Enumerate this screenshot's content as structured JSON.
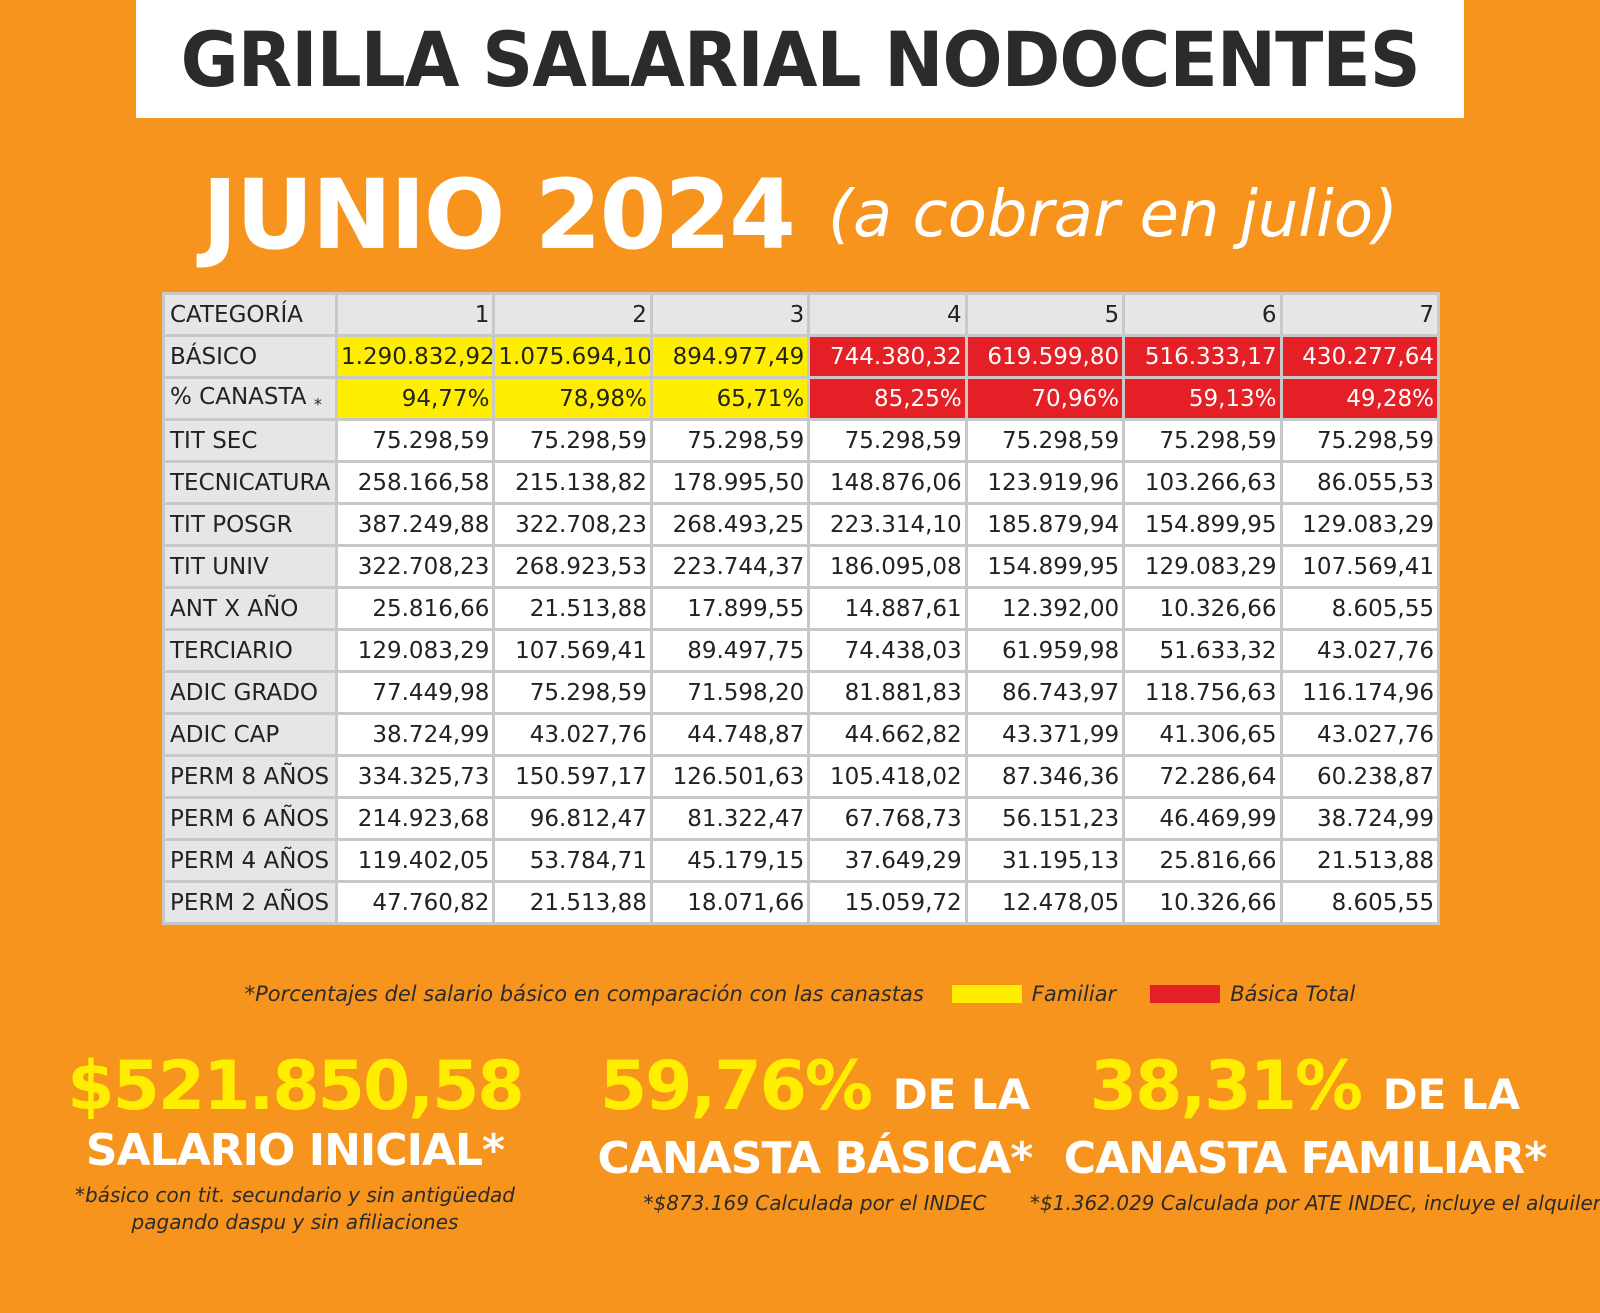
{
  "title": "GRILLA SALARIAL NODOCENTES",
  "period": {
    "month": "JUNIO 2024",
    "note": "(a cobrar en julio)"
  },
  "table": {
    "header": [
      "CATEGORÍA",
      "1",
      "2",
      "3",
      "4",
      "5",
      "6",
      "7"
    ],
    "rows": [
      {
        "label": "BÁSICO",
        "cells": [
          "1.290.832,92",
          "1.075.694,10",
          "894.977,49",
          "744.380,32",
          "619.599,80",
          "516.333,17",
          "430.277,64"
        ],
        "highlight": [
          "yellow",
          "yellow",
          "yellow",
          "red",
          "red",
          "red",
          "red"
        ]
      },
      {
        "label": "% CANASTA",
        "label_mark": "*",
        "cells": [
          "94,77%",
          "78,98%",
          "65,71%",
          "85,25%",
          "70,96%",
          "59,13%",
          "49,28%"
        ],
        "highlight": [
          "yellow",
          "yellow",
          "yellow",
          "red",
          "red",
          "red",
          "red"
        ]
      },
      {
        "label": "TIT SEC",
        "cells": [
          "75.298,59",
          "75.298,59",
          "75.298,59",
          "75.298,59",
          "75.298,59",
          "75.298,59",
          "75.298,59"
        ]
      },
      {
        "label": "TECNICATURA",
        "cells": [
          "258.166,58",
          "215.138,82",
          "178.995,50",
          "148.876,06",
          "123.919,96",
          "103.266,63",
          "86.055,53"
        ]
      },
      {
        "label": "TIT POSGR",
        "cells": [
          "387.249,88",
          "322.708,23",
          "268.493,25",
          "223.314,10",
          "185.879,94",
          "154.899,95",
          "129.083,29"
        ]
      },
      {
        "label": "TIT UNIV",
        "cells": [
          "322.708,23",
          "268.923,53",
          "223.744,37",
          "186.095,08",
          "154.899,95",
          "129.083,29",
          "107.569,41"
        ]
      },
      {
        "label": "ANT X AÑO",
        "cells": [
          "25.816,66",
          "21.513,88",
          "17.899,55",
          "14.887,61",
          "12.392,00",
          "10.326,66",
          "8.605,55"
        ]
      },
      {
        "label": "TERCIARIO",
        "cells": [
          "129.083,29",
          "107.569,41",
          "89.497,75",
          "74.438,03",
          "61.959,98",
          "51.633,32",
          "43.027,76"
        ]
      },
      {
        "label": "ADIC GRADO",
        "cells": [
          "77.449,98",
          "75.298,59",
          "71.598,20",
          "81.881,83",
          "86.743,97",
          "118.756,63",
          "116.174,96"
        ]
      },
      {
        "label": "ADIC CAP",
        "cells": [
          "38.724,99",
          "43.027,76",
          "44.748,87",
          "44.662,82",
          "43.371,99",
          "41.306,65",
          "43.027,76"
        ]
      },
      {
        "label": "PERM 8 AÑOS",
        "cells": [
          "334.325,73",
          "150.597,17",
          "126.501,63",
          "105.418,02",
          "87.346,36",
          "72.286,64",
          "60.238,87"
        ]
      },
      {
        "label": "PERM 6 AÑOS",
        "cells": [
          "214.923,68",
          "96.812,47",
          "81.322,47",
          "67.768,73",
          "56.151,23",
          "46.469,99",
          "38.724,99"
        ]
      },
      {
        "label": "PERM 4 AÑOS",
        "cells": [
          "119.402,05",
          "53.784,71",
          "45.179,15",
          "37.649,29",
          "31.195,13",
          "25.816,66",
          "21.513,88"
        ]
      },
      {
        "label": "PERM 2 AÑOS",
        "cells": [
          "47.760,82",
          "21.513,88",
          "18.071,66",
          "15.059,72",
          "12.478,05",
          "10.326,66",
          "8.605,55"
        ]
      }
    ]
  },
  "legend": {
    "note": "*Porcentajes del salario básico en comparación con las canastas",
    "familiar": "Familiar",
    "basica": "Básica Total"
  },
  "stats": {
    "inicial": {
      "value": "$521.850,58",
      "label": "SALARIO INICIAL*",
      "foot1": "*básico con tit. secundario y sin antigüedad",
      "foot2": "pagando daspu y sin afiliaciones"
    },
    "basica": {
      "value": "59,76%",
      "suffix": "DE LA",
      "label": "CANASTA BÁSICA*",
      "foot1": "*$873.169 Calculada por el INDEC"
    },
    "familiar": {
      "value": "38,31%",
      "suffix": "DE LA",
      "label": "CANASTA FAMILIAR*",
      "foot1": "*$1.362.029 Calculada por ATE INDEC, incluye el alquiler"
    }
  },
  "colors": {
    "background": "#F7941D",
    "yellow": "#ffee00",
    "red": "#e41f25",
    "dark": "#2b2b2b"
  }
}
